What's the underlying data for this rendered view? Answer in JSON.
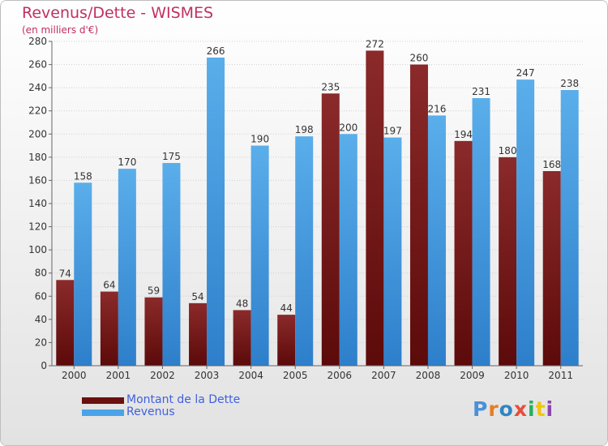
{
  "title": "Revenus/Dette - WISMES",
  "subtitle": "(en milliers d'€)",
  "logo_letters": [
    "P",
    "r",
    "o",
    "x",
    "i",
    "t",
    "i"
  ],
  "logo_colors": [
    "#4a90d9",
    "#e67e22",
    "#2e86c1",
    "#e74c3c",
    "#27ae60",
    "#f1c40f",
    "#8e44ad"
  ],
  "colors": {
    "dette": "#8b1c1c",
    "revenus": "#4aa3e8",
    "title": "#c0305e",
    "legend_text": "#4060e0"
  },
  "chart_data": {
    "type": "bar",
    "categories": [
      "2000",
      "2001",
      "2002",
      "2003",
      "2004",
      "2005",
      "2006",
      "2007",
      "2008",
      "2009",
      "2010",
      "2011"
    ],
    "series": [
      {
        "name": "Montant de la Dette",
        "values": [
          74,
          64,
          59,
          54,
          48,
          44,
          235,
          272,
          260,
          194,
          180,
          168
        ]
      },
      {
        "name": "Revenus",
        "values": [
          158,
          170,
          175,
          266,
          190,
          198,
          200,
          197,
          216,
          231,
          247,
          238
        ]
      }
    ],
    "ylim": [
      0,
      280
    ],
    "ytick_step": 20,
    "yticks": [
      "0",
      "20",
      "40",
      "60",
      "80",
      "100",
      "120",
      "140",
      "160",
      "180",
      "200",
      "220",
      "240",
      "260",
      "280"
    ],
    "grid": true,
    "legend": "bottom-left"
  }
}
